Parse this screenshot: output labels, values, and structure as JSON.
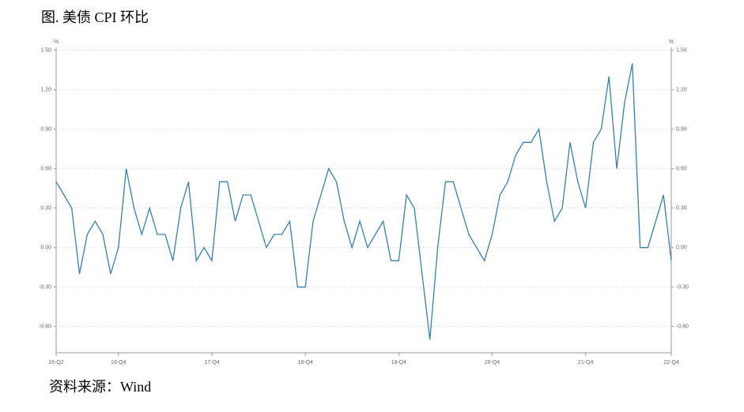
{
  "chart_data": {
    "type": "line",
    "title": "图. 美债 CPI 环比",
    "source": "资料来源：Wind",
    "y_unit": "%",
    "categories": [
      "16-Q2",
      null,
      null,
      null,
      null,
      null,
      null,
      null,
      "16-Q4",
      null,
      null,
      null,
      null,
      null,
      null,
      null,
      null,
      null,
      null,
      null,
      "17-Q4",
      null,
      null,
      null,
      null,
      null,
      null,
      null,
      null,
      null,
      null,
      null,
      "18-Q4",
      null,
      null,
      null,
      null,
      null,
      null,
      null,
      null,
      null,
      null,
      null,
      "19-Q4",
      null,
      null,
      null,
      null,
      null,
      null,
      null,
      null,
      null,
      null,
      null,
      "20-Q4",
      null,
      null,
      null,
      null,
      null,
      null,
      null,
      null,
      null,
      null,
      null,
      "21-Q4",
      null,
      null,
      null,
      null,
      null,
      null,
      null,
      null,
      null,
      null,
      "22-Q4"
    ],
    "series": [
      {
        "name": "美债 CPI 环比",
        "color": "#3a7fa8",
        "values": [
          0.5,
          0.4,
          0.3,
          -0.2,
          0.1,
          0.2,
          0.1,
          -0.2,
          0.0,
          0.6,
          0.3,
          0.1,
          0.3,
          0.1,
          0.1,
          -0.1,
          0.3,
          0.5,
          -0.1,
          0.0,
          -0.1,
          0.5,
          0.5,
          0.2,
          0.4,
          0.4,
          0.2,
          0.0,
          0.1,
          0.1,
          0.2,
          -0.3,
          -0.3,
          0.2,
          0.4,
          0.6,
          0.5,
          0.2,
          0.0,
          0.2,
          0.0,
          0.1,
          0.2,
          -0.1,
          -0.1,
          0.4,
          0.3,
          -0.2,
          -0.7,
          0.0,
          0.5,
          0.5,
          0.3,
          0.1,
          0.0,
          -0.1,
          0.1,
          0.4,
          0.5,
          0.7,
          0.8,
          0.8,
          0.9,
          0.5,
          0.2,
          0.3,
          0.8,
          0.5,
          0.3,
          0.8,
          0.9,
          1.3,
          0.6,
          1.1,
          1.4,
          0.0,
          0.0,
          0.2,
          0.4,
          -0.1
        ]
      }
    ],
    "ylim": [
      -0.8,
      1.5
    ],
    "yticks": [
      {
        "value": 1.5,
        "label": "1.50"
      },
      {
        "value": 1.2,
        "label": "1.20"
      },
      {
        "value": 0.9,
        "label": "0.90"
      },
      {
        "value": 0.6,
        "label": "0.60"
      },
      {
        "value": 0.3,
        "label": "0.30"
      },
      {
        "value": 0,
        "label": "0.00"
      },
      {
        "value": -0.3,
        "label": "-0.30"
      },
      {
        "value": -0.6,
        "label": "-0.60"
      }
    ],
    "grid": true
  }
}
